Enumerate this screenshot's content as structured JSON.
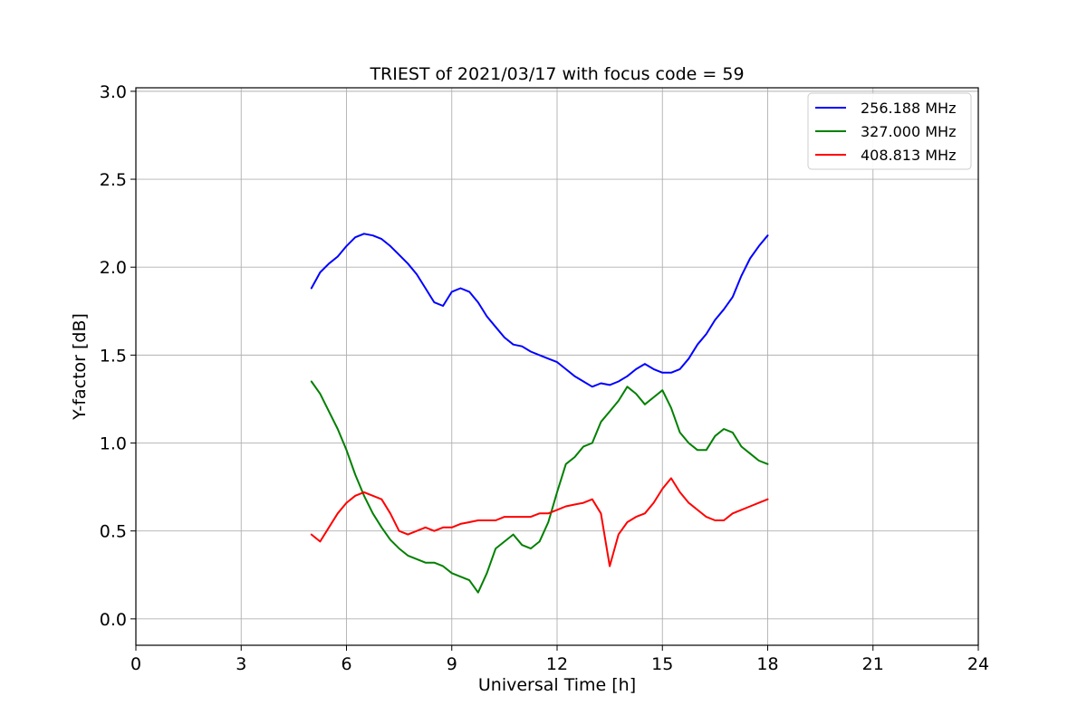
{
  "chart_data": {
    "type": "line",
    "title": "TRIEST of 2021/03/17 with focus code = 59",
    "xlabel": "Universal Time [h]",
    "ylabel": "Y-factor [dB]",
    "xlim": [
      0,
      24
    ],
    "ylim": [
      -0.15,
      3.02
    ],
    "xticks": [
      0,
      3,
      6,
      9,
      12,
      15,
      18,
      21,
      24
    ],
    "xtick_labels": [
      "0",
      "3",
      "6",
      "9",
      "12",
      "15",
      "18",
      "21",
      "24"
    ],
    "yticks": [
      0.0,
      0.5,
      1.0,
      1.5,
      2.0,
      2.5,
      3.0
    ],
    "ytick_labels": [
      "0.0",
      "0.5",
      "1.0",
      "1.5",
      "2.0",
      "2.5",
      "3.0"
    ],
    "grid": true,
    "legend_position": "top-right",
    "series": [
      {
        "name": "256.188 MHz",
        "color": "#0000ff",
        "x": [
          5.0,
          5.25,
          5.5,
          5.75,
          6.0,
          6.25,
          6.5,
          6.75,
          7.0,
          7.25,
          7.5,
          7.75,
          8.0,
          8.25,
          8.5,
          8.75,
          9.0,
          9.25,
          9.5,
          9.75,
          10.0,
          10.25,
          10.5,
          10.75,
          11.0,
          11.25,
          11.5,
          11.75,
          12.0,
          12.25,
          12.5,
          12.75,
          13.0,
          13.25,
          13.5,
          13.75,
          14.0,
          14.25,
          14.5,
          14.75,
          15.0,
          15.25,
          15.5,
          15.75,
          16.0,
          16.25,
          16.5,
          16.75,
          17.0,
          17.25,
          17.5,
          17.75,
          18.0
        ],
        "values": [
          1.88,
          1.97,
          2.02,
          2.06,
          2.12,
          2.17,
          2.19,
          2.18,
          2.16,
          2.12,
          2.07,
          2.02,
          1.96,
          1.88,
          1.8,
          1.78,
          1.86,
          1.88,
          1.86,
          1.8,
          1.72,
          1.66,
          1.6,
          1.56,
          1.55,
          1.52,
          1.5,
          1.48,
          1.46,
          1.42,
          1.38,
          1.35,
          1.32,
          1.34,
          1.33,
          1.35,
          1.38,
          1.42,
          1.45,
          1.42,
          1.4,
          1.4,
          1.42,
          1.48,
          1.56,
          1.62,
          1.7,
          1.76,
          1.83,
          1.95,
          2.05,
          2.12,
          2.18
        ]
      },
      {
        "name": "327.000 MHz",
        "color": "#008000",
        "x": [
          5.0,
          5.25,
          5.5,
          5.75,
          6.0,
          6.25,
          6.5,
          6.75,
          7.0,
          7.25,
          7.5,
          7.75,
          8.0,
          8.25,
          8.5,
          8.75,
          9.0,
          9.25,
          9.5,
          9.75,
          10.0,
          10.25,
          10.5,
          10.75,
          11.0,
          11.25,
          11.5,
          11.75,
          12.0,
          12.25,
          12.5,
          12.75,
          13.0,
          13.25,
          13.5,
          13.75,
          14.0,
          14.25,
          14.5,
          14.75,
          15.0,
          15.25,
          15.5,
          15.75,
          16.0,
          16.25,
          16.5,
          16.75,
          17.0,
          17.25,
          17.5,
          17.75,
          18.0
        ],
        "values": [
          1.35,
          1.28,
          1.18,
          1.08,
          0.96,
          0.82,
          0.7,
          0.6,
          0.52,
          0.45,
          0.4,
          0.36,
          0.34,
          0.32,
          0.32,
          0.3,
          0.26,
          0.24,
          0.22,
          0.15,
          0.26,
          0.4,
          0.44,
          0.48,
          0.42,
          0.4,
          0.44,
          0.55,
          0.72,
          0.88,
          0.92,
          0.98,
          1.0,
          1.12,
          1.18,
          1.24,
          1.32,
          1.28,
          1.22,
          1.26,
          1.3,
          1.2,
          1.06,
          1.0,
          0.96,
          0.96,
          1.04,
          1.08,
          1.06,
          0.98,
          0.94,
          0.9,
          0.88
        ]
      },
      {
        "name": "408.813 MHz",
        "color": "#ff0000",
        "x": [
          5.0,
          5.25,
          5.5,
          5.75,
          6.0,
          6.25,
          6.5,
          6.75,
          7.0,
          7.25,
          7.5,
          7.75,
          8.0,
          8.25,
          8.5,
          8.75,
          9.0,
          9.25,
          9.5,
          9.75,
          10.0,
          10.25,
          10.5,
          10.75,
          11.0,
          11.25,
          11.5,
          11.75,
          12.0,
          12.25,
          12.5,
          12.75,
          13.0,
          13.25,
          13.5,
          13.75,
          14.0,
          14.25,
          14.5,
          14.75,
          15.0,
          15.25,
          15.5,
          15.75,
          16.0,
          16.25,
          16.5,
          16.75,
          17.0,
          17.25,
          17.5,
          17.75,
          18.0
        ],
        "values": [
          0.48,
          0.44,
          0.52,
          0.6,
          0.66,
          0.7,
          0.72,
          0.7,
          0.68,
          0.6,
          0.5,
          0.48,
          0.5,
          0.52,
          0.5,
          0.52,
          0.52,
          0.54,
          0.55,
          0.56,
          0.56,
          0.56,
          0.58,
          0.58,
          0.58,
          0.58,
          0.6,
          0.6,
          0.62,
          0.64,
          0.65,
          0.66,
          0.68,
          0.6,
          0.3,
          0.48,
          0.55,
          0.58,
          0.6,
          0.66,
          0.74,
          0.8,
          0.72,
          0.66,
          0.62,
          0.58,
          0.56,
          0.56,
          0.6,
          0.62,
          0.64,
          0.66,
          0.68
        ]
      }
    ]
  }
}
